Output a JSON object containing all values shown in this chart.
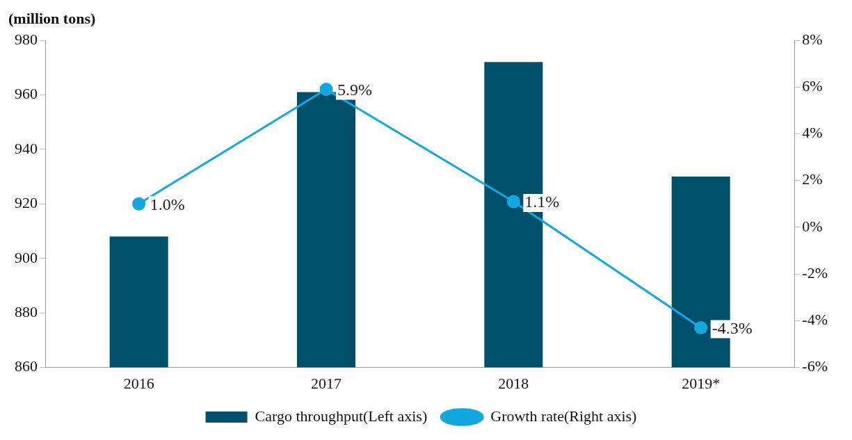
{
  "chart_data": {
    "type": "bar",
    "ylabel": "(million tons)",
    "categories": [
      "2016",
      "2017",
      "2018",
      "2019*"
    ],
    "series": [
      {
        "name": "Cargo throughput(Left axis)",
        "color": "#00506b",
        "values": [
          908,
          961,
          972,
          930
        ]
      },
      {
        "name": "Growth rate(Right axis)",
        "type": "line",
        "axis": "y2",
        "color": "#13a8e0",
        "values": [
          1.0,
          5.9,
          1.1,
          -4.3
        ],
        "value_labels": [
          "1.0%",
          "5.9%",
          "1.1%",
          "-4.3%"
        ]
      }
    ],
    "ylim": [
      860,
      980
    ],
    "yticks": [
      860,
      880,
      900,
      920,
      940,
      960,
      980
    ],
    "y2lim": [
      -6,
      8
    ],
    "y2ticks": [
      {
        "value": -6,
        "label": "-6%"
      },
      {
        "value": -4,
        "label": "-4%"
      },
      {
        "value": -2,
        "label": "-2%"
      },
      {
        "value": 0,
        "label": "0%"
      },
      {
        "value": 2,
        "label": "2%"
      },
      {
        "value": 4,
        "label": "4%"
      },
      {
        "value": 6,
        "label": "6%"
      },
      {
        "value": 8,
        "label": "8%"
      }
    ],
    "grid": false,
    "legend": "bottom",
    "marker": "circle"
  }
}
